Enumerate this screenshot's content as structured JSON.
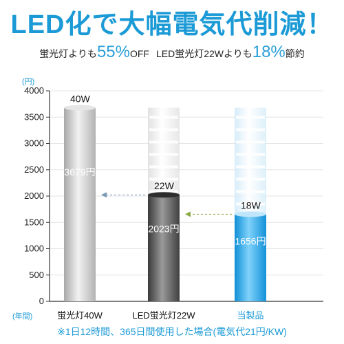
{
  "headline": "LED化で大幅電気代削減！",
  "comparison": {
    "part1_prefix": "蛍光灯よりも",
    "part1_pct": "55%",
    "part1_suffix": "OFF",
    "part2_prefix": "LED蛍光灯22Wよりも",
    "part2_pct": "18%",
    "part2_suffix": "節約"
  },
  "footnote": "※1日12時間、365日間使用した場合(電気代21円/KW)",
  "colors": {
    "accent": "#1b9ad6",
    "bar_fluorescent": "#c7c7c7",
    "bar_led22w": "#5e5e5e",
    "bar_product": "#1fa3e6"
  },
  "chart_data": {
    "type": "bar",
    "ylabel": "(円)",
    "xlabel": "(年間)",
    "ylim": [
      0,
      4000
    ],
    "yticks": [
      "0",
      "500",
      "1000",
      "1500",
      "2000",
      "2500",
      "3000",
      "3500",
      "4000"
    ],
    "categories": [
      "蛍光灯40W",
      "LED蛍光灯22W",
      "当製品"
    ],
    "values": [
      3679,
      2023,
      1656
    ],
    "value_labels": [
      "3679円",
      "2023円",
      "1656円"
    ],
    "wattage_labels": [
      "40W",
      "22W",
      "18W"
    ],
    "grid": true,
    "annotations": [
      "dashed arrow from LED蛍光灯22W top toward 蛍光灯40W bar",
      "dashed arrow from 当製品 top toward LED蛍光灯22W bar"
    ]
  }
}
